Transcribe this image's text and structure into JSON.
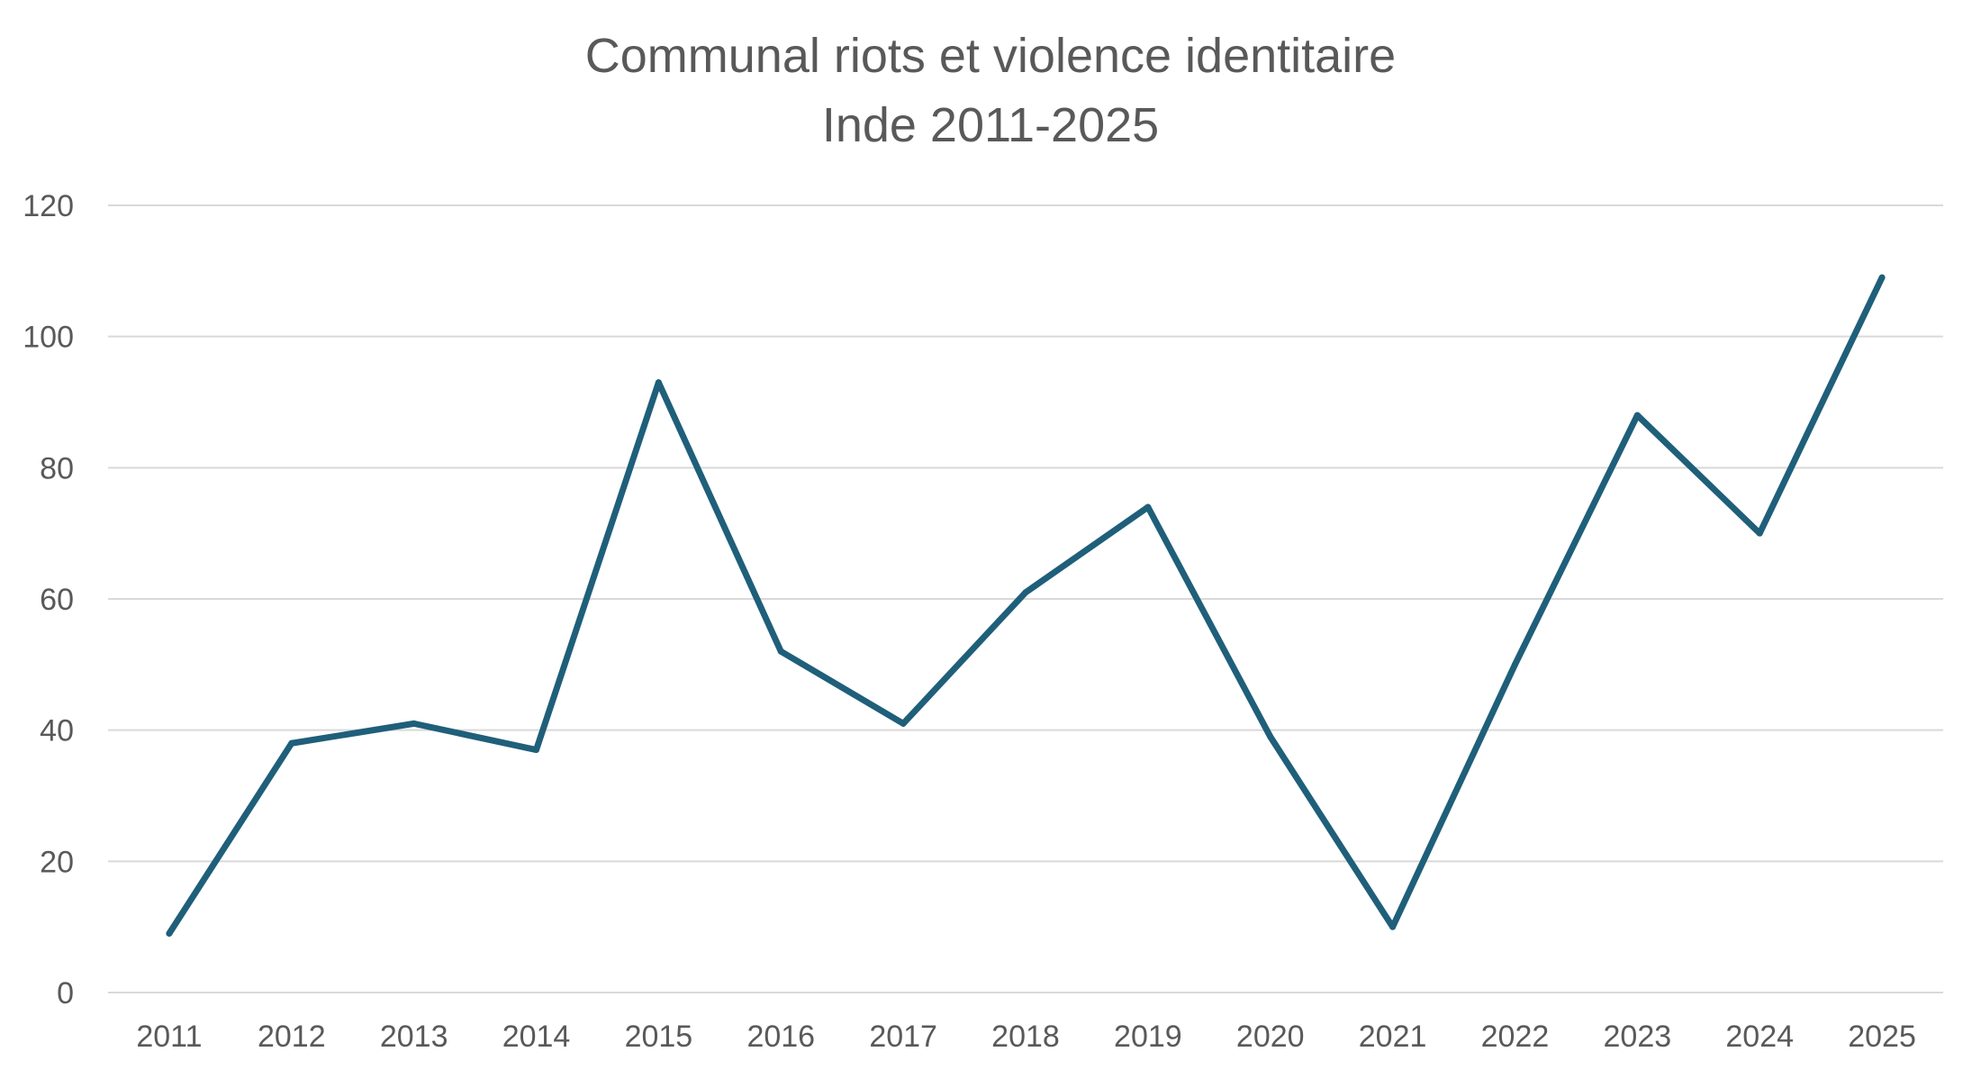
{
  "chart_data": {
    "type": "line",
    "title_lines": [
      "Communal riots et violence identitaire",
      "Inde 2011-2025"
    ],
    "categories": [
      "2011",
      "2012",
      "2013",
      "2014",
      "2015",
      "2016",
      "2017",
      "2018",
      "2019",
      "2020",
      "2021",
      "2022",
      "2023",
      "2024",
      "2025"
    ],
    "series": [
      {
        "name": "Communal riots et violence identitaire",
        "values": [
          9,
          38,
          41,
          37,
          93,
          52,
          41,
          61,
          74,
          39,
          10,
          50,
          88,
          70,
          109
        ],
        "color": "#1f5f7a"
      }
    ],
    "yticks": [
      "0",
      "20",
      "40",
      "60",
      "80",
      "100",
      "120"
    ],
    "ylim": [
      0,
      120
    ],
    "xlabel": "",
    "ylabel": "",
    "grid": true,
    "legend": "none"
  }
}
